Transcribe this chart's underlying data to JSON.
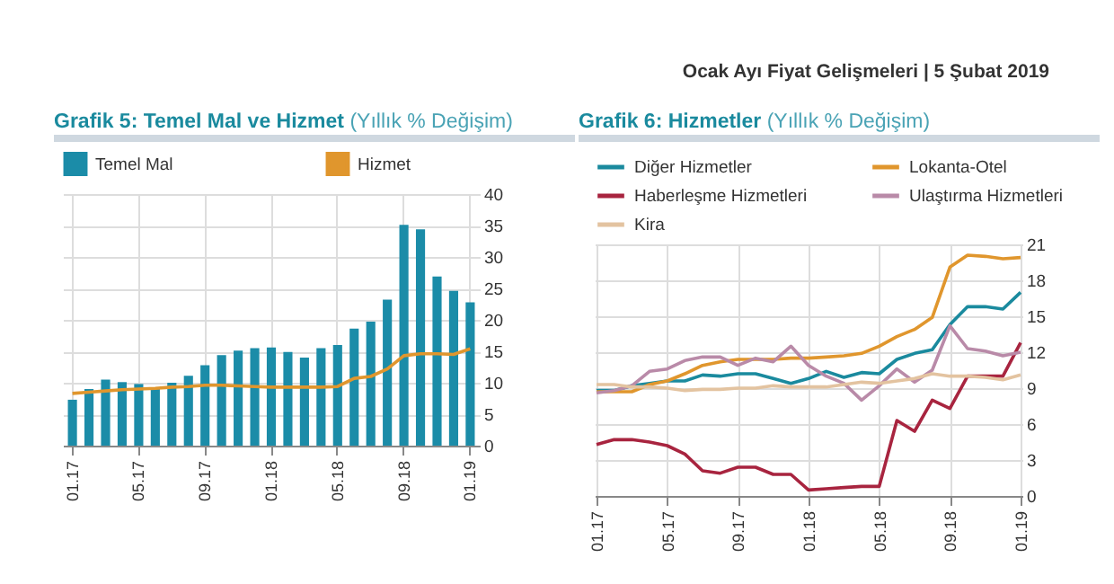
{
  "chart_data": [
    {
      "type": "bar",
      "title": "Grafik 5: Temel Mal ve Hizmet",
      "subtitle": "(Yıllık % Değişim)",
      "categories": [
        "01.17",
        null,
        null,
        null,
        "05.17",
        null,
        null,
        null,
        "09.17",
        null,
        null,
        null,
        "01.18",
        null,
        null,
        null,
        "05.18",
        null,
        null,
        null,
        "09.18",
        null,
        null,
        null,
        "01.19"
      ],
      "series": [
        {
          "name": "Temel Mal",
          "color": "#1b8ca8",
          "values": [
            7.3,
            9.0,
            10.5,
            10.1,
            9.8,
            9.2,
            10.0,
            11.1,
            12.8,
            14.4,
            15.1,
            15.5,
            15.6,
            14.9,
            14.0,
            15.5,
            16.0,
            18.6,
            19.7,
            23.2,
            35.1,
            34.4,
            26.9,
            24.6,
            22.8
          ]
        },
        {
          "name": "Hizmet",
          "type": "line",
          "color": "#e0962d",
          "values": [
            8.3,
            8.5,
            8.7,
            8.9,
            9.0,
            9.1,
            9.3,
            9.4,
            9.6,
            9.6,
            9.5,
            9.4,
            9.3,
            9.3,
            9.3,
            9.3,
            9.4,
            10.7,
            11.0,
            12.2,
            14.3,
            14.6,
            14.6,
            14.5,
            15.4
          ]
        }
      ],
      "ylim": [
        0,
        40
      ],
      "yticks": [
        0,
        5,
        10,
        15,
        20,
        25,
        30,
        35,
        40
      ],
      "grid": true,
      "legend": "top",
      "marker": "none",
      "line_style": "solid"
    },
    {
      "type": "line",
      "title": "Grafik 6: Hizmetler",
      "subtitle": "(Yıllık % Değişim)",
      "annotations": [
        "Ocak Ayı Fiyat Gelişmeleri | 5 Şubat 2019"
      ],
      "categories": [
        "01.17",
        null,
        null,
        null,
        "05.17",
        null,
        null,
        null,
        "09.17",
        null,
        null,
        null,
        "01.18",
        null,
        null,
        null,
        "05.18",
        null,
        null,
        null,
        "09.18",
        null,
        null,
        null,
        "01.19"
      ],
      "series": [
        {
          "name": "Diğer Hizmetler",
          "color": "#1a8a9e",
          "values": [
            8.8,
            8.8,
            9.2,
            9.4,
            9.6,
            9.6,
            10.1,
            10.0,
            10.2,
            10.2,
            9.8,
            9.4,
            9.8,
            10.4,
            9.9,
            10.3,
            10.2,
            11.4,
            11.9,
            12.2,
            14.3,
            15.8,
            15.8,
            15.6,
            17.0
          ]
        },
        {
          "name": "Lokanta-Otel",
          "color": "#e0962d",
          "values": [
            8.7,
            8.7,
            8.7,
            9.3,
            9.6,
            10.2,
            10.9,
            11.2,
            11.4,
            11.4,
            11.4,
            11.5,
            11.5,
            11.6,
            11.7,
            11.9,
            12.5,
            13.3,
            13.9,
            14.9,
            19.1,
            20.1,
            20.0,
            19.8,
            19.9
          ]
        },
        {
          "name": "Haberleşme Hizmetleri",
          "color": "#a8243f",
          "values": [
            4.3,
            4.7,
            4.7,
            4.5,
            4.2,
            3.5,
            2.1,
            1.9,
            2.4,
            2.4,
            1.8,
            1.8,
            0.5,
            0.6,
            0.7,
            0.8,
            0.8,
            6.3,
            5.4,
            8.0,
            7.3,
            10.0,
            10.0,
            10.0,
            12.8
          ]
        },
        {
          "name": "Ulaştırma Hizmetleri",
          "color": "#b98aa8",
          "values": [
            8.6,
            8.8,
            9.2,
            10.4,
            10.6,
            11.3,
            11.6,
            11.6,
            10.9,
            11.5,
            11.2,
            12.5,
            10.9,
            10.0,
            9.4,
            8.0,
            9.2,
            10.6,
            9.5,
            10.5,
            14.2,
            12.3,
            12.1,
            11.7,
            12.0
          ]
        },
        {
          "name": "Kira",
          "color": "#e3c3a0",
          "values": [
            9.3,
            9.3,
            9.1,
            9.1,
            9.0,
            8.8,
            8.9,
            8.9,
            9.0,
            9.0,
            9.2,
            9.1,
            9.1,
            9.1,
            9.3,
            9.5,
            9.4,
            9.6,
            9.8,
            10.2,
            10.0,
            10.0,
            9.9,
            9.7,
            10.1
          ]
        }
      ],
      "ylim": [
        0,
        21
      ],
      "yticks": [
        0,
        3,
        6,
        9,
        12,
        15,
        18,
        21
      ],
      "grid": true,
      "legend": "top",
      "marker": "none",
      "line_style": "solid"
    }
  ]
}
